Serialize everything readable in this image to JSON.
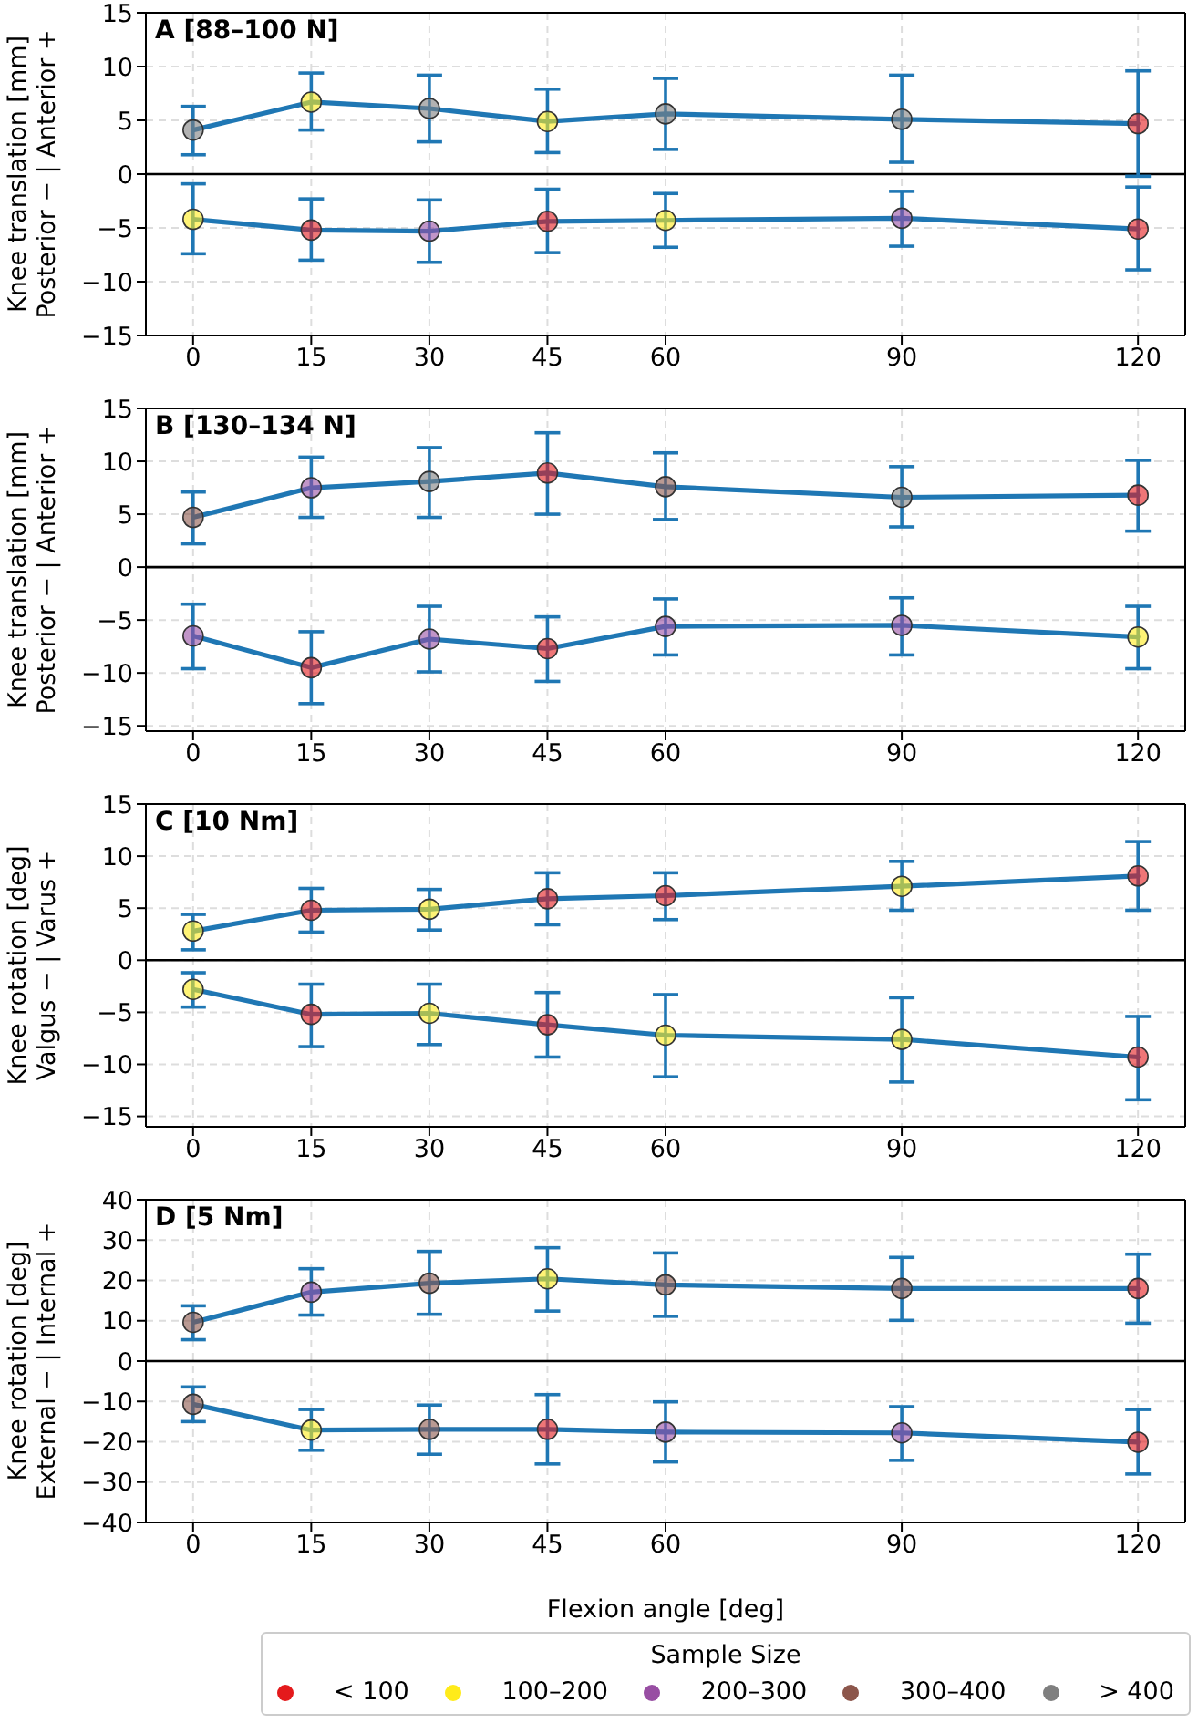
{
  "chart_data": [
    {
      "type": "line",
      "title": "A [88–100 N]",
      "ylabel": "Knee translation [mm]\nPosterior − | Anterior +",
      "x": [
        0,
        15,
        30,
        45,
        60,
        90,
        120
      ],
      "xlim": [
        -6,
        126
      ],
      "xticks": [
        0,
        15,
        30,
        45,
        60,
        90,
        120
      ],
      "ylim": [
        -15,
        15
      ],
      "yticks": [
        -15,
        -10,
        -5,
        0,
        5,
        10,
        15
      ],
      "grid": true,
      "legend": false,
      "ref_lines": [
        {
          "axis": "y",
          "value": 0,
          "color": "#000000"
        }
      ],
      "series": [
        {
          "color": "#1f77b4",
          "marker": "none",
          "values": [
            4.1,
            6.7,
            6.1,
            4.9,
            5.6,
            5.1,
            4.7
          ],
          "errors": [
            [
              1.8,
              6.3
            ],
            [
              4.1,
              9.4
            ],
            [
              3.0,
              9.2
            ],
            [
              2.0,
              7.9
            ],
            [
              2.3,
              8.9
            ],
            [
              1.1,
              9.2
            ],
            [
              -0.2,
              9.6
            ]
          ]
        },
        {
          "color": "#1f77b4",
          "marker": "none",
          "values": [
            -4.2,
            -5.2,
            -5.3,
            -4.4,
            -4.3,
            -4.1,
            -5.1
          ],
          "errors": [
            [
              -7.4,
              -0.9
            ],
            [
              -8.0,
              -2.3
            ],
            [
              -8.2,
              -2.4
            ],
            [
              -7.3,
              -1.4
            ],
            [
              -6.8,
              -1.8
            ],
            [
              -6.7,
              -1.6
            ],
            [
              -8.9,
              -1.2
            ]
          ]
        },
        {
          "type": "scatter",
          "marker": "circle",
          "color": "#e41a1c",
          "x": [
            120,
            15,
            45,
            120
          ],
          "values": [
            4.7,
            -5.2,
            -4.4,
            -5.1
          ]
        },
        {
          "type": "scatter",
          "marker": "circle",
          "color": "#ffeb1a",
          "x": [
            15,
            45,
            0,
            60
          ],
          "values": [
            6.7,
            4.9,
            -4.2,
            -4.3
          ]
        },
        {
          "type": "scatter",
          "marker": "circle",
          "color": "#984ea3",
          "x": [
            30,
            90
          ],
          "values": [
            -5.3,
            -4.1
          ]
        },
        {
          "type": "scatter",
          "marker": "circle",
          "color": "#7f7f7f",
          "x": [
            0,
            30,
            60,
            90
          ],
          "values": [
            4.1,
            6.1,
            5.6,
            5.1
          ]
        }
      ]
    },
    {
      "type": "line",
      "title": "B [130–134 N]",
      "ylabel": "Knee translation [mm]\nPosterior − | Anterior +",
      "x": [
        0,
        15,
        30,
        45,
        60,
        90,
        120
      ],
      "xlim": [
        -6,
        126
      ],
      "xticks": [
        0,
        15,
        30,
        45,
        60,
        90,
        120
      ],
      "ylim": [
        -15.5,
        15
      ],
      "yticks": [
        -15,
        -10,
        -5,
        0,
        5,
        10,
        15
      ],
      "grid": true,
      "legend": false,
      "ref_lines": [
        {
          "axis": "y",
          "value": 0,
          "color": "#000000"
        }
      ],
      "series": [
        {
          "color": "#1f77b4",
          "marker": "none",
          "values": [
            4.7,
            7.5,
            8.1,
            8.9,
            7.6,
            6.6,
            6.8
          ],
          "errors": [
            [
              2.2,
              7.1
            ],
            [
              4.7,
              10.4
            ],
            [
              4.7,
              11.3
            ],
            [
              5.0,
              12.7
            ],
            [
              4.5,
              10.8
            ],
            [
              3.8,
              9.5
            ],
            [
              3.4,
              10.1
            ]
          ]
        },
        {
          "color": "#1f77b4",
          "marker": "none",
          "values": [
            -6.5,
            -9.5,
            -6.8,
            -7.7,
            -5.6,
            -5.5,
            -6.6
          ],
          "errors": [
            [
              -9.6,
              -3.5
            ],
            [
              -12.9,
              -6.1
            ],
            [
              -9.9,
              -3.7
            ],
            [
              -10.8,
              -4.7
            ],
            [
              -8.3,
              -3.0
            ],
            [
              -8.3,
              -2.9
            ],
            [
              -9.6,
              -3.7
            ]
          ]
        },
        {
          "type": "scatter",
          "marker": "circle",
          "color": "#e41a1c",
          "x": [
            45,
            120,
            15,
            45
          ],
          "values": [
            8.9,
            6.8,
            -9.5,
            -7.7
          ]
        },
        {
          "type": "scatter",
          "marker": "circle",
          "color": "#ffeb1a",
          "x": [
            120
          ],
          "values": [
            -6.6
          ]
        },
        {
          "type": "scatter",
          "marker": "circle",
          "color": "#984ea3",
          "x": [
            15,
            0,
            30,
            60,
            90
          ],
          "values": [
            7.5,
            -6.5,
            -6.8,
            -5.6,
            -5.5
          ]
        },
        {
          "type": "scatter",
          "marker": "circle",
          "color": "#8c564b",
          "x": [
            0,
            60
          ],
          "values": [
            4.7,
            7.6
          ]
        },
        {
          "type": "scatter",
          "marker": "circle",
          "color": "#7f7f7f",
          "x": [
            30,
            90
          ],
          "values": [
            8.1,
            6.6
          ]
        }
      ]
    },
    {
      "type": "line",
      "title": "C [10 Nm]",
      "ylabel": "Knee rotation [deg]\nValgus − | Varus +",
      "x": [
        0,
        15,
        30,
        45,
        60,
        90,
        120
      ],
      "xlim": [
        -6,
        126
      ],
      "xticks": [
        0,
        15,
        30,
        45,
        60,
        90,
        120
      ],
      "ylim": [
        -16,
        15
      ],
      "yticks": [
        -15,
        -10,
        -5,
        0,
        5,
        10,
        15
      ],
      "grid": true,
      "legend": false,
      "ref_lines": [
        {
          "axis": "y",
          "value": 0,
          "color": "#000000"
        }
      ],
      "series": [
        {
          "color": "#1f77b4",
          "marker": "none",
          "values": [
            2.8,
            4.8,
            4.9,
            5.9,
            6.2,
            7.1,
            8.1
          ],
          "errors": [
            [
              1.0,
              4.4
            ],
            [
              2.7,
              6.9
            ],
            [
              2.9,
              6.8
            ],
            [
              3.4,
              8.4
            ],
            [
              3.9,
              8.4
            ],
            [
              4.8,
              9.5
            ],
            [
              4.8,
              11.4
            ]
          ]
        },
        {
          "color": "#1f77b4",
          "marker": "none",
          "values": [
            -2.8,
            -5.2,
            -5.1,
            -6.2,
            -7.2,
            -7.6,
            -9.3
          ],
          "errors": [
            [
              -4.5,
              -1.2
            ],
            [
              -8.3,
              -2.3
            ],
            [
              -8.1,
              -2.3
            ],
            [
              -9.3,
              -3.1
            ],
            [
              -11.2,
              -3.3
            ],
            [
              -11.7,
              -3.6
            ],
            [
              -13.4,
              -5.4
            ]
          ]
        },
        {
          "type": "scatter",
          "marker": "circle",
          "color": "#e41a1c",
          "x": [
            15,
            45,
            60,
            120,
            15,
            45,
            120
          ],
          "values": [
            4.8,
            5.9,
            6.2,
            8.1,
            -5.2,
            -6.2,
            -9.3
          ]
        },
        {
          "type": "scatter",
          "marker": "circle",
          "color": "#ffeb1a",
          "x": [
            0,
            30,
            90,
            0,
            30,
            60,
            90
          ],
          "values": [
            2.8,
            4.9,
            7.1,
            -2.8,
            -5.1,
            -7.2,
            -7.6
          ]
        }
      ]
    },
    {
      "type": "line",
      "title": "D [5 Nm]",
      "ylabel": "Knee rotation [deg]\nExternal − | Internal +",
      "xlabel": "Flexion angle [deg]",
      "legend_title": "Sample Size",
      "x": [
        0,
        15,
        30,
        45,
        60,
        90,
        120
      ],
      "xlim": [
        -6,
        126
      ],
      "xticks": [
        0,
        15,
        30,
        45,
        60,
        90,
        120
      ],
      "ylim": [
        -40,
        40
      ],
      "yticks": [
        -40,
        -30,
        -20,
        -10,
        0,
        10,
        20,
        30,
        40
      ],
      "grid": true,
      "legend": "bottom",
      "ref_lines": [
        {
          "axis": "y",
          "value": 0,
          "color": "#000000"
        }
      ],
      "series": [
        {
          "color": "#1f77b4",
          "marker": "none",
          "values": [
            9.6,
            17.1,
            19.3,
            20.4,
            18.9,
            18.0,
            18.0
          ],
          "errors": [
            [
              5.3,
              13.7
            ],
            [
              11.4,
              22.9
            ],
            [
              11.6,
              27.2
            ],
            [
              12.4,
              28.1
            ],
            [
              11.1,
              26.8
            ],
            [
              10.1,
              25.7
            ],
            [
              9.4,
              26.5
            ]
          ]
        },
        {
          "color": "#1f77b4",
          "marker": "none",
          "values": [
            -10.7,
            -17.1,
            -16.9,
            -16.9,
            -17.6,
            -17.8,
            -20.1
          ],
          "errors": [
            [
              -15.0,
              -6.4
            ],
            [
              -22.1,
              -12.0
            ],
            [
              -23.1,
              -10.9
            ],
            [
              -25.5,
              -8.3
            ],
            [
              -25.0,
              -10.1
            ],
            [
              -24.6,
              -11.3
            ],
            [
              -28.0,
              -12.0
            ]
          ]
        },
        {
          "type": "scatter",
          "marker": "circle",
          "name": "< 100",
          "color": "#e41a1c",
          "x": [
            120,
            45,
            120
          ],
          "values": [
            18.0,
            -16.9,
            -20.1
          ]
        },
        {
          "type": "scatter",
          "marker": "circle",
          "name": "100–200",
          "color": "#ffeb1a",
          "x": [
            45,
            15
          ],
          "values": [
            20.4,
            -17.1
          ]
        },
        {
          "type": "scatter",
          "marker": "circle",
          "name": "200–300",
          "color": "#984ea3",
          "x": [
            15,
            60,
            90
          ],
          "values": [
            17.1,
            -17.6,
            -17.8
          ]
        },
        {
          "type": "scatter",
          "marker": "circle",
          "name": "300–400",
          "color": "#8c564b",
          "x": [
            0,
            30,
            60,
            90,
            0,
            30
          ],
          "values": [
            9.6,
            19.3,
            18.9,
            18.0,
            -10.7,
            -16.9
          ]
        },
        {
          "type": "scatter",
          "marker": "circle",
          "name": "> 400",
          "color": "#7f7f7f",
          "values": [
            null,
            null,
            null,
            null,
            null,
            null,
            null
          ]
        }
      ]
    }
  ]
}
